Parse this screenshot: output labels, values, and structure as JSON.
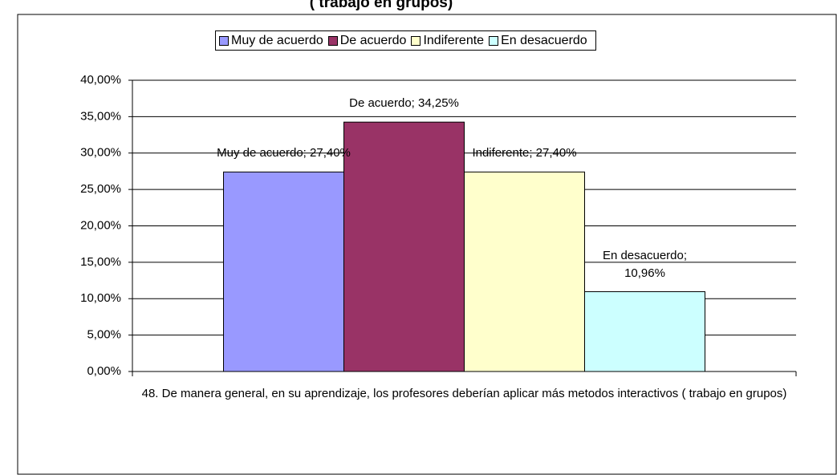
{
  "chart_data": {
    "type": "bar",
    "title": "( trabajo en grupos)",
    "categories": [
      "48. De manera general, en su aprendizaje, los profesores deberían aplicar más metodos interactivos ( trabajo en grupos)"
    ],
    "series": [
      {
        "name": "Muy de acuerdo",
        "color": "#9999ff",
        "values": [
          27.4
        ],
        "value_labels": [
          "Muy de acuerdo; 27,40%"
        ]
      },
      {
        "name": "De acuerdo",
        "color": "#993366",
        "values": [
          34.25
        ],
        "value_labels": [
          "De acuerdo; 34,25%"
        ]
      },
      {
        "name": "Indiferente",
        "color": "#ffffcc",
        "values": [
          27.4
        ],
        "value_labels": [
          "Indiferente; 27,40%"
        ]
      },
      {
        "name": "En desacuerdo",
        "color": "#ccffff",
        "values": [
          10.96
        ],
        "value_labels": [
          "En desacuerdo; 10,96%"
        ]
      }
    ],
    "ylim": [
      0,
      40
    ],
    "yticks": [
      {
        "value": 0,
        "label": "0,00%"
      },
      {
        "value": 5,
        "label": "5,00%"
      },
      {
        "value": 10,
        "label": "10,00%"
      },
      {
        "value": 15,
        "label": "15,00%"
      },
      {
        "value": 20,
        "label": "20,00%"
      },
      {
        "value": 25,
        "label": "25,00%"
      },
      {
        "value": 30,
        "label": "30,00%"
      },
      {
        "value": 35,
        "label": "35,00%"
      },
      {
        "value": 40,
        "label": "40,00%"
      }
    ],
    "grid": true,
    "legend": "top"
  }
}
